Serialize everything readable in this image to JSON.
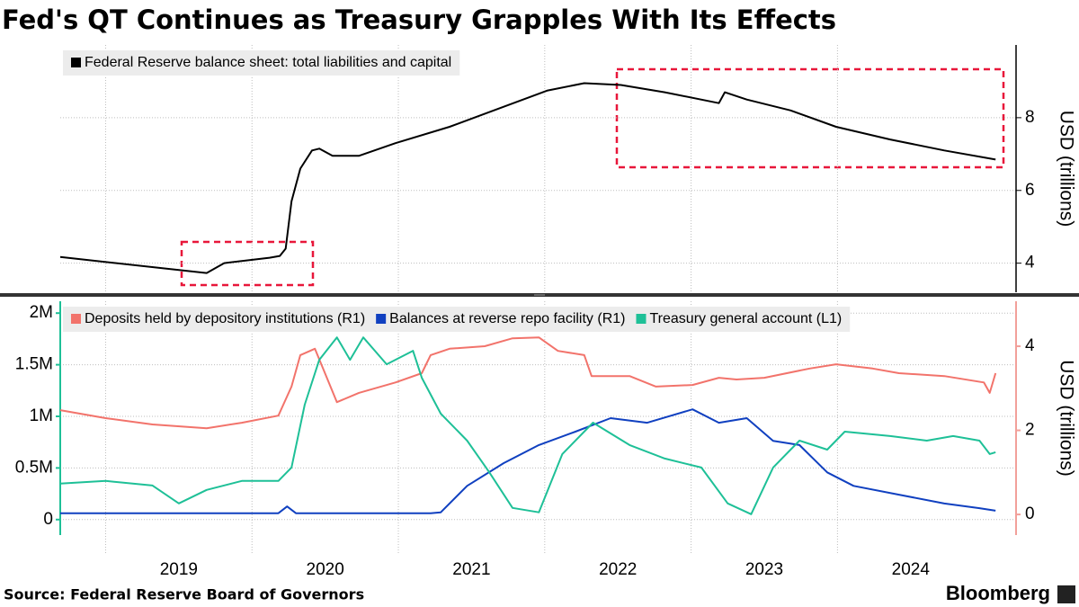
{
  "title": "Fed's QT Continues as Treasury Grapples With Its Effects",
  "source": "Source: Federal Reserve Board of Governors",
  "brand": "Bloomberg",
  "chart_data": [
    {
      "type": "line",
      "ylabel": "USD (trillions)",
      "y_axis_side": "right",
      "grid": true,
      "xlim": [
        2018.69,
        2025.22
      ],
      "ylim": [
        3.2,
        10
      ],
      "yticks": [
        4,
        6,
        8
      ],
      "series": [
        {
          "name": "Federal Reserve balance sheet: total liabilities and capital",
          "color": "#000000",
          "x": [
            2018.69,
            2019.69,
            2019.81,
            2020.12,
            2020.19,
            2020.23,
            2020.27,
            2020.33,
            2020.41,
            2020.46,
            2020.55,
            2020.73,
            2020.98,
            2021.35,
            2021.72,
            2022.02,
            2022.27,
            2022.52,
            2022.82,
            2023.19,
            2023.23,
            2023.38,
            2023.68,
            2023.99,
            2024.36,
            2024.73,
            2025.08
          ],
          "values": [
            4.17,
            3.73,
            4.0,
            4.15,
            4.2,
            4.4,
            5.7,
            6.6,
            7.1,
            7.15,
            6.95,
            6.95,
            7.3,
            7.75,
            8.3,
            8.75,
            8.95,
            8.9,
            8.7,
            8.4,
            8.7,
            8.5,
            8.2,
            7.75,
            7.4,
            7.1,
            6.85
          ]
        }
      ]
    },
    {
      "type": "line",
      "y2label": "USD (trillions)",
      "grid": true,
      "xlim": [
        2018.69,
        2025.22
      ],
      "xticks": [
        2019,
        2020,
        2021,
        2022,
        2023,
        2024
      ],
      "ylim": [
        -150000,
        2115000
      ],
      "yticks": [
        0,
        {
          "value": 500000,
          "label": "0.5M"
        },
        {
          "value": 1000000,
          "label": "1M"
        },
        {
          "value": 1500000,
          "label": "1.5M"
        },
        {
          "value": 2000000,
          "label": "2M"
        }
      ],
      "y2lim": [
        -0.49,
        5.07
      ],
      "y2ticks": [
        0,
        2,
        4
      ],
      "series": [
        {
          "name": "Deposits held by depository institutions (R1)",
          "color": "#f2736b",
          "axis": "y2",
          "x": [
            2018.69,
            2019.0,
            2019.32,
            2019.69,
            2019.93,
            2020.18,
            2020.27,
            2020.33,
            2020.43,
            2020.58,
            2020.73,
            2020.98,
            2021.16,
            2021.22,
            2021.35,
            2021.59,
            2021.78,
            2021.96,
            2022.09,
            2022.27,
            2022.32,
            2022.58,
            2022.76,
            2023.01,
            2023.19,
            2023.31,
            2023.5,
            2023.81,
            2023.99,
            2024.24,
            2024.42,
            2024.73,
            2025.0,
            2025.04,
            2025.08
          ],
          "values": [
            2.48,
            2.29,
            2.14,
            2.05,
            2.18,
            2.35,
            3.04,
            3.79,
            3.94,
            2.67,
            2.89,
            3.14,
            3.36,
            3.79,
            3.94,
            4.0,
            4.19,
            4.21,
            3.89,
            3.79,
            3.29,
            3.29,
            3.04,
            3.08,
            3.25,
            3.21,
            3.25,
            3.47,
            3.57,
            3.47,
            3.36,
            3.29,
            3.14,
            2.89,
            3.36
          ]
        },
        {
          "name": "Balances at reverse repo facility (R1)",
          "color": "#1040c0",
          "axis": "y2",
          "x": [
            2018.69,
            2020.18,
            2020.24,
            2020.3,
            2021.22,
            2021.29,
            2021.47,
            2021.72,
            2021.96,
            2022.21,
            2022.45,
            2022.7,
            2023.01,
            2023.19,
            2023.38,
            2023.56,
            2023.74,
            2023.93,
            2024.11,
            2024.42,
            2024.73,
            2024.97,
            2025.08
          ],
          "values": [
            0.03,
            0.03,
            0.19,
            0.03,
            0.03,
            0.05,
            0.68,
            1.22,
            1.65,
            1.97,
            2.29,
            2.18,
            2.5,
            2.18,
            2.29,
            1.75,
            1.65,
            1.0,
            0.68,
            0.47,
            0.26,
            0.15,
            0.09
          ]
        },
        {
          "name": "Treasury general account (L1)",
          "color": "#1ec097",
          "x": [
            2018.69,
            2019.0,
            2019.32,
            2019.5,
            2019.69,
            2019.93,
            2020.18,
            2020.27,
            2020.36,
            2020.46,
            2020.58,
            2020.67,
            2020.76,
            2020.92,
            2021.1,
            2021.16,
            2021.29,
            2021.47,
            2021.62,
            2021.78,
            2021.96,
            2022.12,
            2022.33,
            2022.58,
            2022.82,
            2023.07,
            2023.25,
            2023.41,
            2023.56,
            2023.74,
            2023.93,
            2024.05,
            2024.36,
            2024.61,
            2024.79,
            2024.97,
            2025.04,
            2025.08
          ],
          "values": [
            348000,
            374000,
            330000,
            157000,
            287000,
            374000,
            374000,
            504000,
            1113000,
            1548000,
            1765000,
            1548000,
            1765000,
            1504000,
            1635000,
            1374000,
            1026000,
            765000,
            461000,
            113000,
            70000,
            635000,
            939000,
            722000,
            591000,
            504000,
            157000,
            52000,
            504000,
            765000,
            678000,
            852000,
            809000,
            765000,
            809000,
            765000,
            635000,
            652000
          ]
        }
      ]
    }
  ]
}
